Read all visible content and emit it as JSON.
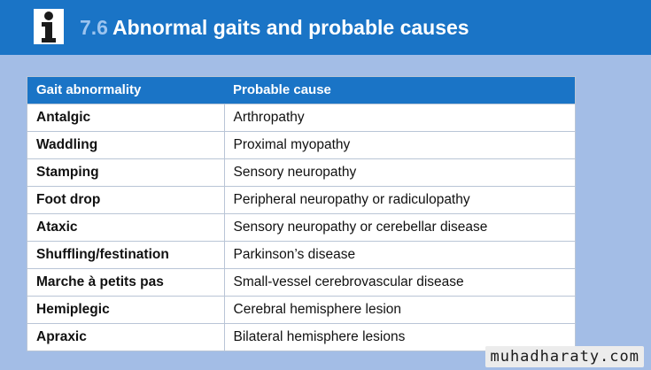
{
  "header": {
    "title_number": "7.6",
    "title_text": "Abnormal gaits and probable causes"
  },
  "table": {
    "columns": [
      "Gait abnormality",
      "Probable cause"
    ],
    "rows": [
      [
        "Antalgic",
        "Arthropathy"
      ],
      [
        "Waddling",
        "Proximal myopathy"
      ],
      [
        "Stamping",
        "Sensory neuropathy"
      ],
      [
        "Foot drop",
        "Peripheral neuropathy or radiculopathy"
      ],
      [
        "Ataxic",
        "Sensory neuropathy or cerebellar disease"
      ],
      [
        "Shuffling/festination",
        "Parkinson’s disease"
      ],
      [
        "Marche à petits pas",
        "Small-vessel cerebrovascular disease"
      ],
      [
        "Hemiplegic",
        "Cerebral hemisphere lesion"
      ],
      [
        "Apraxic",
        "Bilateral hemisphere lesions"
      ]
    ]
  },
  "watermark": "muhadharaty.com",
  "icons": {
    "info": "info-icon"
  },
  "colors": {
    "brand_blue": "#1a74c6",
    "background": "#a3bde6"
  }
}
